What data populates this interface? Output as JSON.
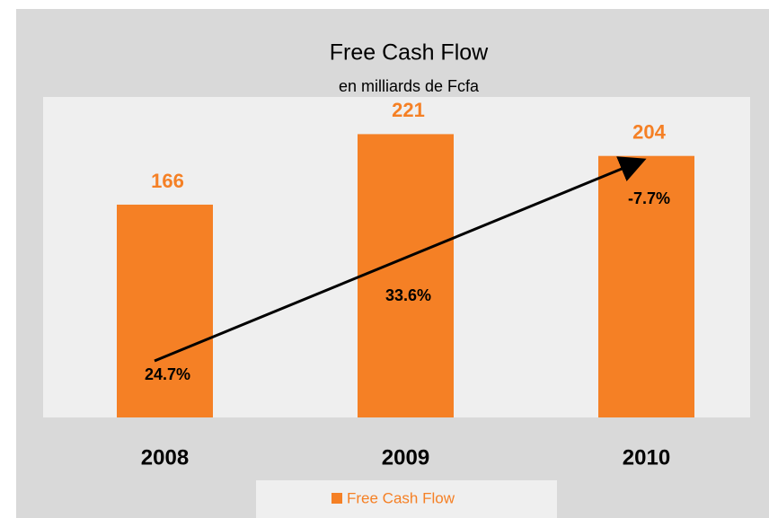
{
  "chart_data": {
    "type": "bar",
    "title": "Free Cash Flow",
    "subtitle": "en milliards de Fcfa",
    "categories": [
      "2008",
      "2009",
      "2010"
    ],
    "series": [
      {
        "name": "Free Cash Flow",
        "color": "#f58025",
        "values": [
          166,
          221,
          204
        ]
      }
    ],
    "annotations": [
      "24.7%",
      "33.6%",
      "-7.7%"
    ],
    "ylim": [
      0,
      250
    ],
    "legend": "bottom"
  }
}
